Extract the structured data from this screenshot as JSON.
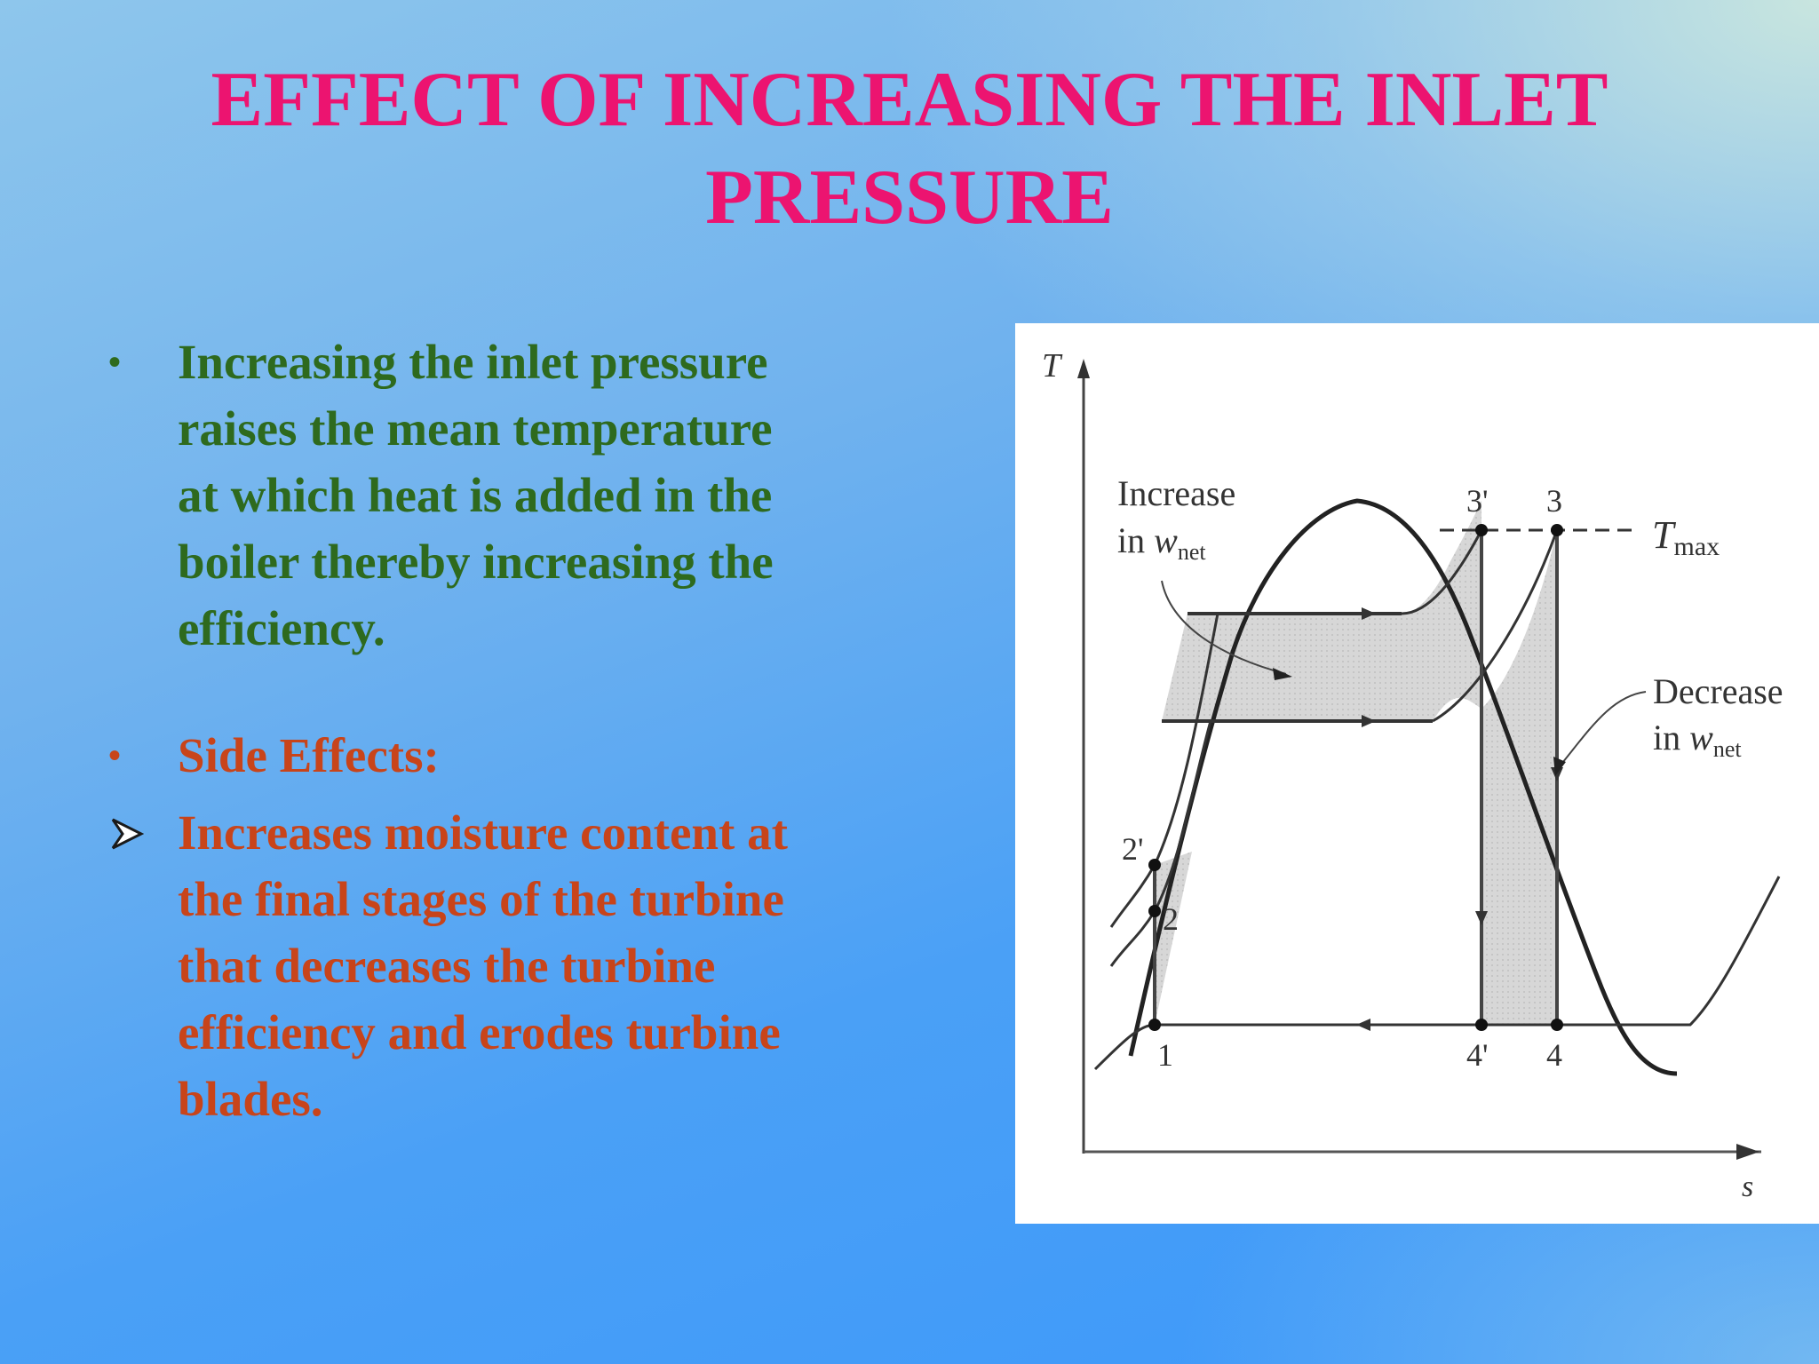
{
  "slide": {
    "title_line1": "EFFECT OF INCREASING THE INLET",
    "title_line2": "PRESSURE",
    "bullets": [
      {
        "lines": [
          "Increasing the inlet pressure",
          "raises the mean  temperature",
          "at which heat is added in the",
          "boiler thereby increasing the",
          "efficiency."
        ]
      },
      {
        "lines": [
          "Side Effects:"
        ]
      },
      {
        "lines": [
          "Increases moisture content at",
          "the final stages of the turbine",
          "that decreases the turbine",
          "efficiency and erodes turbine",
          "blades."
        ]
      }
    ],
    "colors": {
      "title": "#ec1470",
      "bullet_green": "#2e6a1e",
      "bullet_orange": "#c8441a"
    }
  },
  "diagram": {
    "axis_y": "T",
    "axis_x": "s",
    "t_max_main": "T",
    "t_max_sub": "max",
    "increase_line1": "Increase",
    "increase_in": "in",
    "increase_w": "w",
    "increase_sub": "net",
    "decrease_line1": "Decrease",
    "decrease_in": "in",
    "decrease_w": "w",
    "decrease_sub": "net",
    "points": {
      "p1": "1",
      "p2": "2",
      "p2p": "2'",
      "p3": "3",
      "p3p": "3'",
      "p4": "4",
      "p4p": "4'"
    }
  }
}
